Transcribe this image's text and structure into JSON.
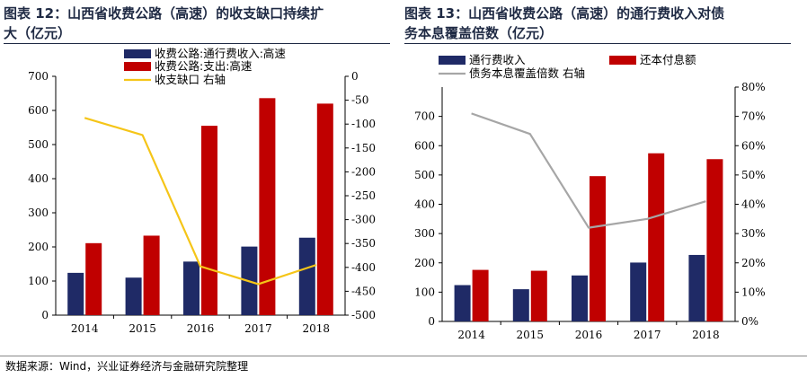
{
  "chart_data": [
    {
      "type": "bar",
      "title": "图表 12：山西省收费公路（高速）的收支缺口持续扩大（亿元）",
      "categories": [
        "2014",
        "2015",
        "2016",
        "2017",
        "2018"
      ],
      "series": [
        {
          "name": "收费公路:通行费收入:高速",
          "axis": "left",
          "type": "bar",
          "color": "#1f2a66",
          "values": [
            124,
            110,
            157,
            201,
            227
          ]
        },
        {
          "name": "收费公路:支出:高速",
          "axis": "left",
          "type": "bar",
          "color": "#c00000",
          "values": [
            211,
            233,
            555,
            636,
            620
          ]
        },
        {
          "name": "收支缺口 右轴",
          "axis": "right",
          "type": "line",
          "color": "#f5c518",
          "values": [
            -87,
            -123,
            -398,
            -435,
            -395
          ]
        }
      ],
      "ylim": [
        0,
        700
      ],
      "y_ticks": [
        "0",
        "100",
        "200",
        "300",
        "400",
        "500",
        "600",
        "700"
      ],
      "y2lim": [
        -500,
        0
      ],
      "y2_ticks": [
        "-500",
        "-450",
        "-400",
        "-350",
        "-300",
        "-250",
        "-200",
        "-150",
        "-100",
        "-50",
        "0"
      ],
      "legend": "top"
    },
    {
      "type": "bar",
      "title": "图表 13：山西省收费公路（高速）的通行费收入对债务本息覆盖倍数（亿元）",
      "categories": [
        "2014",
        "2015",
        "2016",
        "2017",
        "2018"
      ],
      "series": [
        {
          "name": "通行费收入",
          "axis": "left",
          "type": "bar",
          "color": "#1f2a66",
          "values": [
            124,
            110,
            157,
            201,
            227
          ]
        },
        {
          "name": "还本付息额",
          "axis": "left",
          "type": "bar",
          "color": "#c00000",
          "values": [
            176,
            173,
            496,
            574,
            554
          ]
        },
        {
          "name": "债务本息覆盖倍数 右轴",
          "axis": "right",
          "type": "line",
          "color": "#a6a6a6",
          "values": [
            0.71,
            0.64,
            0.32,
            0.35,
            0.41
          ]
        }
      ],
      "ylim": [
        0,
        800
      ],
      "y_ticks": [
        "0",
        "100",
        "200",
        "300",
        "400",
        "500",
        "600",
        "700"
      ],
      "y2lim": [
        0,
        0.8
      ],
      "y2_ticks": [
        "0%",
        "10%",
        "20%",
        "30%",
        "40%",
        "50%",
        "60%",
        "70%",
        "80%"
      ],
      "legend": "top"
    }
  ],
  "titles": {
    "left_line1": "图表 12：山西省收费公路（高速）的收支缺口持续扩",
    "left_line2": "大（亿元）",
    "right_line1": "图表 13：山西省收费公路（高速）的通行费收入对债",
    "right_line2": "务本息覆盖倍数（亿元）"
  },
  "footer": "数据来源：Wind，兴业证券经济与金融研究院整理"
}
